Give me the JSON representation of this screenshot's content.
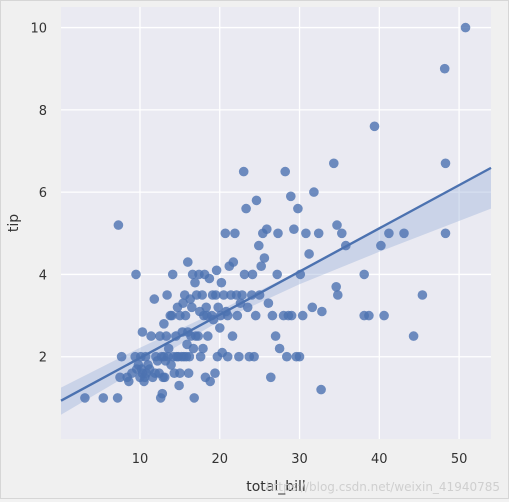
{
  "chart_data": {
    "type": "scatter",
    "title": "",
    "xlabel": "total_bill",
    "ylabel": "tip",
    "xlim": [
      0.1,
      54
    ],
    "ylim": [
      0,
      10.5
    ],
    "xticks": [
      10,
      20,
      30,
      40,
      50
    ],
    "yticks": [
      2,
      4,
      6,
      8,
      10
    ],
    "grid": true,
    "legend": "none",
    "colors": {
      "background": "#eaeaf2",
      "grid": "#ffffff",
      "points": "#4c72b0",
      "band": "#a5b8dc"
    },
    "points": [
      [
        3.1,
        1.0
      ],
      [
        5.4,
        1.0
      ],
      [
        7.2,
        1.0
      ],
      [
        7.3,
        5.2
      ],
      [
        7.5,
        1.5
      ],
      [
        7.7,
        2.0
      ],
      [
        8.4,
        1.5
      ],
      [
        8.6,
        1.4
      ],
      [
        9.0,
        1.6
      ],
      [
        9.4,
        2.0
      ],
      [
        9.5,
        4.0
      ],
      [
        9.6,
        1.7
      ],
      [
        9.8,
        1.8
      ],
      [
        10.0,
        1.5
      ],
      [
        10.1,
        2.0
      ],
      [
        10.2,
        1.7
      ],
      [
        10.3,
        1.6
      ],
      [
        10.3,
        2.6
      ],
      [
        10.5,
        1.4
      ],
      [
        10.6,
        1.5
      ],
      [
        10.7,
        2.0
      ],
      [
        10.8,
        1.6
      ],
      [
        11.0,
        1.8
      ],
      [
        11.2,
        1.7
      ],
      [
        11.4,
        2.5
      ],
      [
        11.6,
        1.5
      ],
      [
        11.8,
        3.4
      ],
      [
        11.9,
        1.6
      ],
      [
        12.0,
        2.0
      ],
      [
        12.2,
        1.9
      ],
      [
        12.4,
        1.6
      ],
      [
        12.5,
        2.5
      ],
      [
        12.6,
        1.0
      ],
      [
        12.7,
        2.0
      ],
      [
        12.8,
        1.1
      ],
      [
        12.9,
        1.5
      ],
      [
        13.0,
        2.0
      ],
      [
        13.0,
        2.8
      ],
      [
        13.1,
        1.5
      ],
      [
        13.2,
        1.9
      ],
      [
        13.3,
        2.5
      ],
      [
        13.4,
        3.5
      ],
      [
        13.5,
        2.0
      ],
      [
        13.6,
        2.2
      ],
      [
        13.8,
        3.0
      ],
      [
        13.9,
        1.8
      ],
      [
        14.0,
        3.0
      ],
      [
        14.1,
        4.0
      ],
      [
        14.2,
        2.0
      ],
      [
        14.3,
        1.6
      ],
      [
        14.5,
        2.5
      ],
      [
        14.6,
        2.0
      ],
      [
        14.7,
        3.2
      ],
      [
        14.8,
        2.0
      ],
      [
        14.9,
        1.3
      ],
      [
        15.0,
        1.6
      ],
      [
        15.0,
        3.0
      ],
      [
        15.2,
        2.0
      ],
      [
        15.3,
        2.6
      ],
      [
        15.4,
        3.3
      ],
      [
        15.5,
        2.0
      ],
      [
        15.6,
        3.5
      ],
      [
        15.7,
        3.0
      ],
      [
        15.8,
        2.0
      ],
      [
        15.9,
        2.3
      ],
      [
        16.0,
        4.3
      ],
      [
        16.0,
        2.6
      ],
      [
        16.1,
        1.6
      ],
      [
        16.2,
        2.0
      ],
      [
        16.3,
        3.4
      ],
      [
        16.4,
        2.5
      ],
      [
        16.5,
        3.2
      ],
      [
        16.6,
        4.0
      ],
      [
        16.7,
        2.2
      ],
      [
        16.8,
        1.0
      ],
      [
        16.9,
        3.8
      ],
      [
        17.0,
        2.5
      ],
      [
        17.1,
        3.5
      ],
      [
        17.3,
        2.5
      ],
      [
        17.4,
        4.0
      ],
      [
        17.5,
        3.1
      ],
      [
        17.6,
        2.0
      ],
      [
        17.8,
        3.5
      ],
      [
        17.9,
        2.2
      ],
      [
        18.0,
        3.0
      ],
      [
        18.1,
        4.0
      ],
      [
        18.2,
        1.5
      ],
      [
        18.3,
        3.2
      ],
      [
        18.4,
        3.0
      ],
      [
        18.5,
        2.5
      ],
      [
        18.7,
        3.9
      ],
      [
        18.8,
        1.4
      ],
      [
        19.0,
        3.0
      ],
      [
        19.1,
        3.5
      ],
      [
        19.2,
        2.9
      ],
      [
        19.4,
        1.6
      ],
      [
        19.5,
        3.5
      ],
      [
        19.6,
        4.1
      ],
      [
        19.7,
        2.0
      ],
      [
        19.8,
        3.2
      ],
      [
        20.0,
        2.7
      ],
      [
        20.1,
        3.0
      ],
      [
        20.2,
        3.8
      ],
      [
        20.3,
        2.1
      ],
      [
        20.5,
        3.5
      ],
      [
        20.7,
        5.0
      ],
      [
        20.8,
        3.1
      ],
      [
        21.0,
        3.0
      ],
      [
        21.0,
        2.0
      ],
      [
        21.2,
        4.2
      ],
      [
        21.4,
        3.5
      ],
      [
        21.6,
        2.5
      ],
      [
        21.7,
        4.3
      ],
      [
        21.9,
        5.0
      ],
      [
        22.1,
        3.5
      ],
      [
        22.2,
        3.0
      ],
      [
        22.4,
        2.0
      ],
      [
        22.6,
        3.3
      ],
      [
        22.8,
        3.5
      ],
      [
        23.0,
        6.5
      ],
      [
        23.1,
        4.0
      ],
      [
        23.3,
        5.6
      ],
      [
        23.5,
        3.2
      ],
      [
        23.7,
        2.0
      ],
      [
        24.0,
        3.5
      ],
      [
        24.1,
        4.0
      ],
      [
        24.3,
        2.0
      ],
      [
        24.5,
        3.0
      ],
      [
        24.6,
        5.8
      ],
      [
        24.9,
        4.7
      ],
      [
        25.0,
        3.5
      ],
      [
        25.2,
        4.2
      ],
      [
        25.4,
        5.0
      ],
      [
        25.6,
        4.4
      ],
      [
        25.9,
        5.1
      ],
      [
        26.1,
        3.3
      ],
      [
        26.4,
        1.5
      ],
      [
        26.6,
        3.0
      ],
      [
        27.0,
        2.5
      ],
      [
        27.2,
        4.0
      ],
      [
        27.3,
        5.0
      ],
      [
        27.5,
        2.2
      ],
      [
        28.0,
        3.0
      ],
      [
        28.2,
        6.5
      ],
      [
        28.4,
        2.0
      ],
      [
        28.6,
        3.0
      ],
      [
        28.9,
        5.9
      ],
      [
        29.0,
        3.0
      ],
      [
        29.3,
        5.1
      ],
      [
        29.6,
        2.0
      ],
      [
        29.8,
        5.6
      ],
      [
        30.0,
        2.0
      ],
      [
        30.1,
        4.0
      ],
      [
        30.4,
        3.0
      ],
      [
        30.8,
        5.0
      ],
      [
        31.2,
        4.5
      ],
      [
        31.6,
        3.2
      ],
      [
        31.8,
        6.0
      ],
      [
        32.4,
        5.0
      ],
      [
        32.7,
        1.2
      ],
      [
        32.8,
        3.1
      ],
      [
        34.3,
        6.7
      ],
      [
        34.6,
        3.7
      ],
      [
        34.7,
        5.2
      ],
      [
        34.8,
        3.5
      ],
      [
        35.3,
        5.0
      ],
      [
        35.8,
        4.7
      ],
      [
        38.1,
        4.0
      ],
      [
        38.1,
        3.0
      ],
      [
        38.7,
        3.0
      ],
      [
        39.4,
        7.6
      ],
      [
        40.2,
        4.7
      ],
      [
        40.6,
        3.0
      ],
      [
        41.2,
        5.0
      ],
      [
        43.1,
        5.0
      ],
      [
        44.3,
        2.5
      ],
      [
        45.4,
        3.5
      ],
      [
        48.2,
        9.0
      ],
      [
        48.3,
        6.7
      ],
      [
        48.3,
        5.0
      ],
      [
        50.8,
        10.0
      ]
    ],
    "regression": {
      "slope": 0.105,
      "intercept": 0.92,
      "x_range": [
        0.1,
        54
      ],
      "band": [
        [
          0.1,
          0.59,
          1.25
        ],
        [
          10,
          1.72,
          2.22
        ],
        [
          20,
          2.87,
          3.13
        ],
        [
          30,
          3.76,
          4.08
        ],
        [
          40,
          4.55,
          5.15
        ],
        [
          54,
          5.6,
          6.6
        ]
      ]
    }
  },
  "watermark": "https://blog.csdn.net/weixin_41940785"
}
